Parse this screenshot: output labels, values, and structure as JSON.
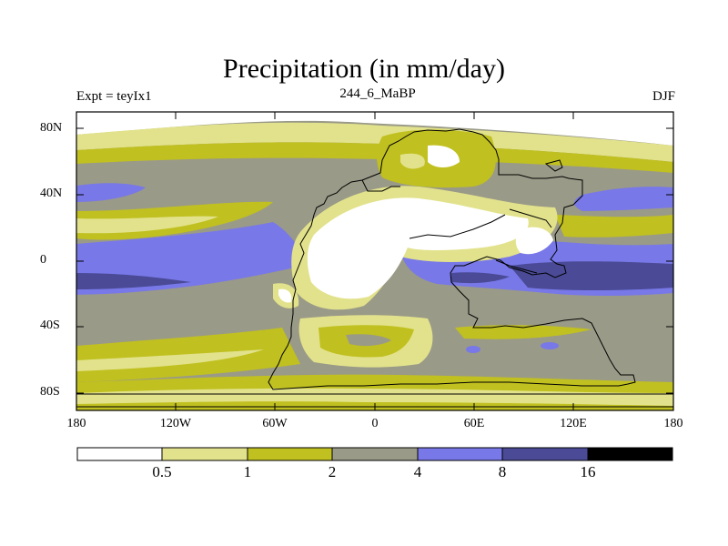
{
  "title": "Precipitation (in mm/day)",
  "subtitle_left": "Expt = teyIx1",
  "subtitle_center": "244_6_MaBP",
  "subtitle_right": "DJF",
  "lat_labels": [
    "80N",
    "40N",
    "0",
    "40S",
    "80S"
  ],
  "lon_labels": [
    "180",
    "120W",
    "60W",
    "0",
    "60E",
    "120E",
    "180"
  ],
  "colorbar": {
    "levels": [
      "0.5",
      "1",
      "2",
      "4",
      "8",
      "16"
    ],
    "colors": [
      "#ffffff",
      "#e2e28c",
      "#c0c020",
      "#9a9a88",
      "#7878e8",
      "#4a4a96",
      "#000000"
    ]
  },
  "chart_data": {
    "type": "filled-contour-map",
    "variable": "Precipitation",
    "units": "mm/day",
    "season": "DJF",
    "experiment": "teyIx1",
    "age": "244_6_MaBP",
    "lon_range": [
      -180,
      180
    ],
    "lat_range": [
      -90,
      90
    ],
    "lon_ticks": [
      -180,
      -120,
      -60,
      0,
      60,
      120,
      180
    ],
    "lat_ticks": [
      80,
      40,
      0,
      -40,
      -80
    ],
    "contour_levels": [
      0.5,
      1,
      2,
      4,
      8,
      16
    ]
  }
}
